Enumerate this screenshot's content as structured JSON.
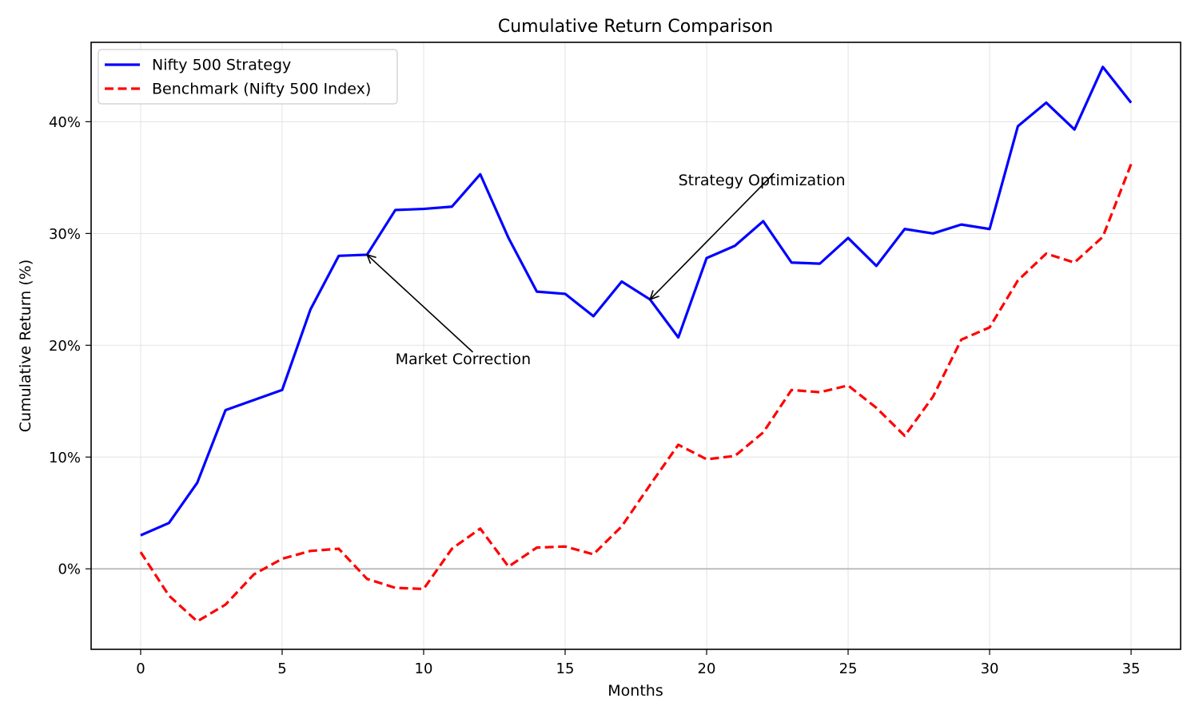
{
  "chart_data": {
    "type": "line",
    "title": "Cumulative Return Comparison",
    "xlabel": "Months",
    "ylabel": "Cumulative Return (%)",
    "xlim": [
      -1.75,
      36.75
    ],
    "ylim": [
      -7.2,
      47.1
    ],
    "x_ticks": [
      0,
      5,
      10,
      15,
      20,
      25,
      30,
      35
    ],
    "y_ticks": [
      0,
      10,
      20,
      30,
      40
    ],
    "y_tick_format": "percent",
    "grid": true,
    "zero_line": true,
    "legend_position": "upper-left",
    "x": [
      0,
      1,
      2,
      3,
      4,
      5,
      6,
      7,
      8,
      9,
      10,
      11,
      12,
      13,
      14,
      15,
      16,
      17,
      18,
      19,
      20,
      21,
      22,
      23,
      24,
      25,
      26,
      27,
      28,
      29,
      30,
      31,
      32,
      33,
      34,
      35
    ],
    "series": [
      {
        "name": "Nifty 500 Strategy",
        "color": "#0000ff",
        "style": "solid",
        "values": [
          3.0,
          4.1,
          7.7,
          14.2,
          15.1,
          16.0,
          23.2,
          28.0,
          28.1,
          32.1,
          32.2,
          32.4,
          35.3,
          29.6,
          24.8,
          24.6,
          22.6,
          25.7,
          24.1,
          20.7,
          27.8,
          28.9,
          31.1,
          27.4,
          27.3,
          29.6,
          27.1,
          30.4,
          30.0,
          30.8,
          30.4,
          39.6,
          41.7,
          39.3,
          44.9,
          41.7
        ]
      },
      {
        "name": "Benchmark (Nifty 500 Index)",
        "color": "#ff0000",
        "style": "dashed",
        "values": [
          1.5,
          -2.4,
          -4.7,
          -3.2,
          -0.5,
          0.9,
          1.6,
          1.8,
          -0.9,
          -1.7,
          -1.8,
          1.8,
          3.6,
          0.2,
          1.9,
          2.0,
          1.3,
          3.8,
          7.5,
          11.1,
          9.8,
          10.1,
          12.2,
          16.0,
          15.8,
          16.4,
          14.4,
          11.9,
          15.4,
          20.5,
          21.6,
          25.8,
          28.2,
          27.4,
          29.7,
          36.2
        ]
      }
    ],
    "annotations": [
      {
        "text": "Market Correction",
        "xy": [
          8,
          28.1
        ],
        "text_xy": [
          9,
          18.3
        ]
      },
      {
        "text": "Strategy Optimization",
        "xy": [
          18,
          24.1
        ],
        "text_xy": [
          19,
          34.3
        ]
      }
    ]
  }
}
